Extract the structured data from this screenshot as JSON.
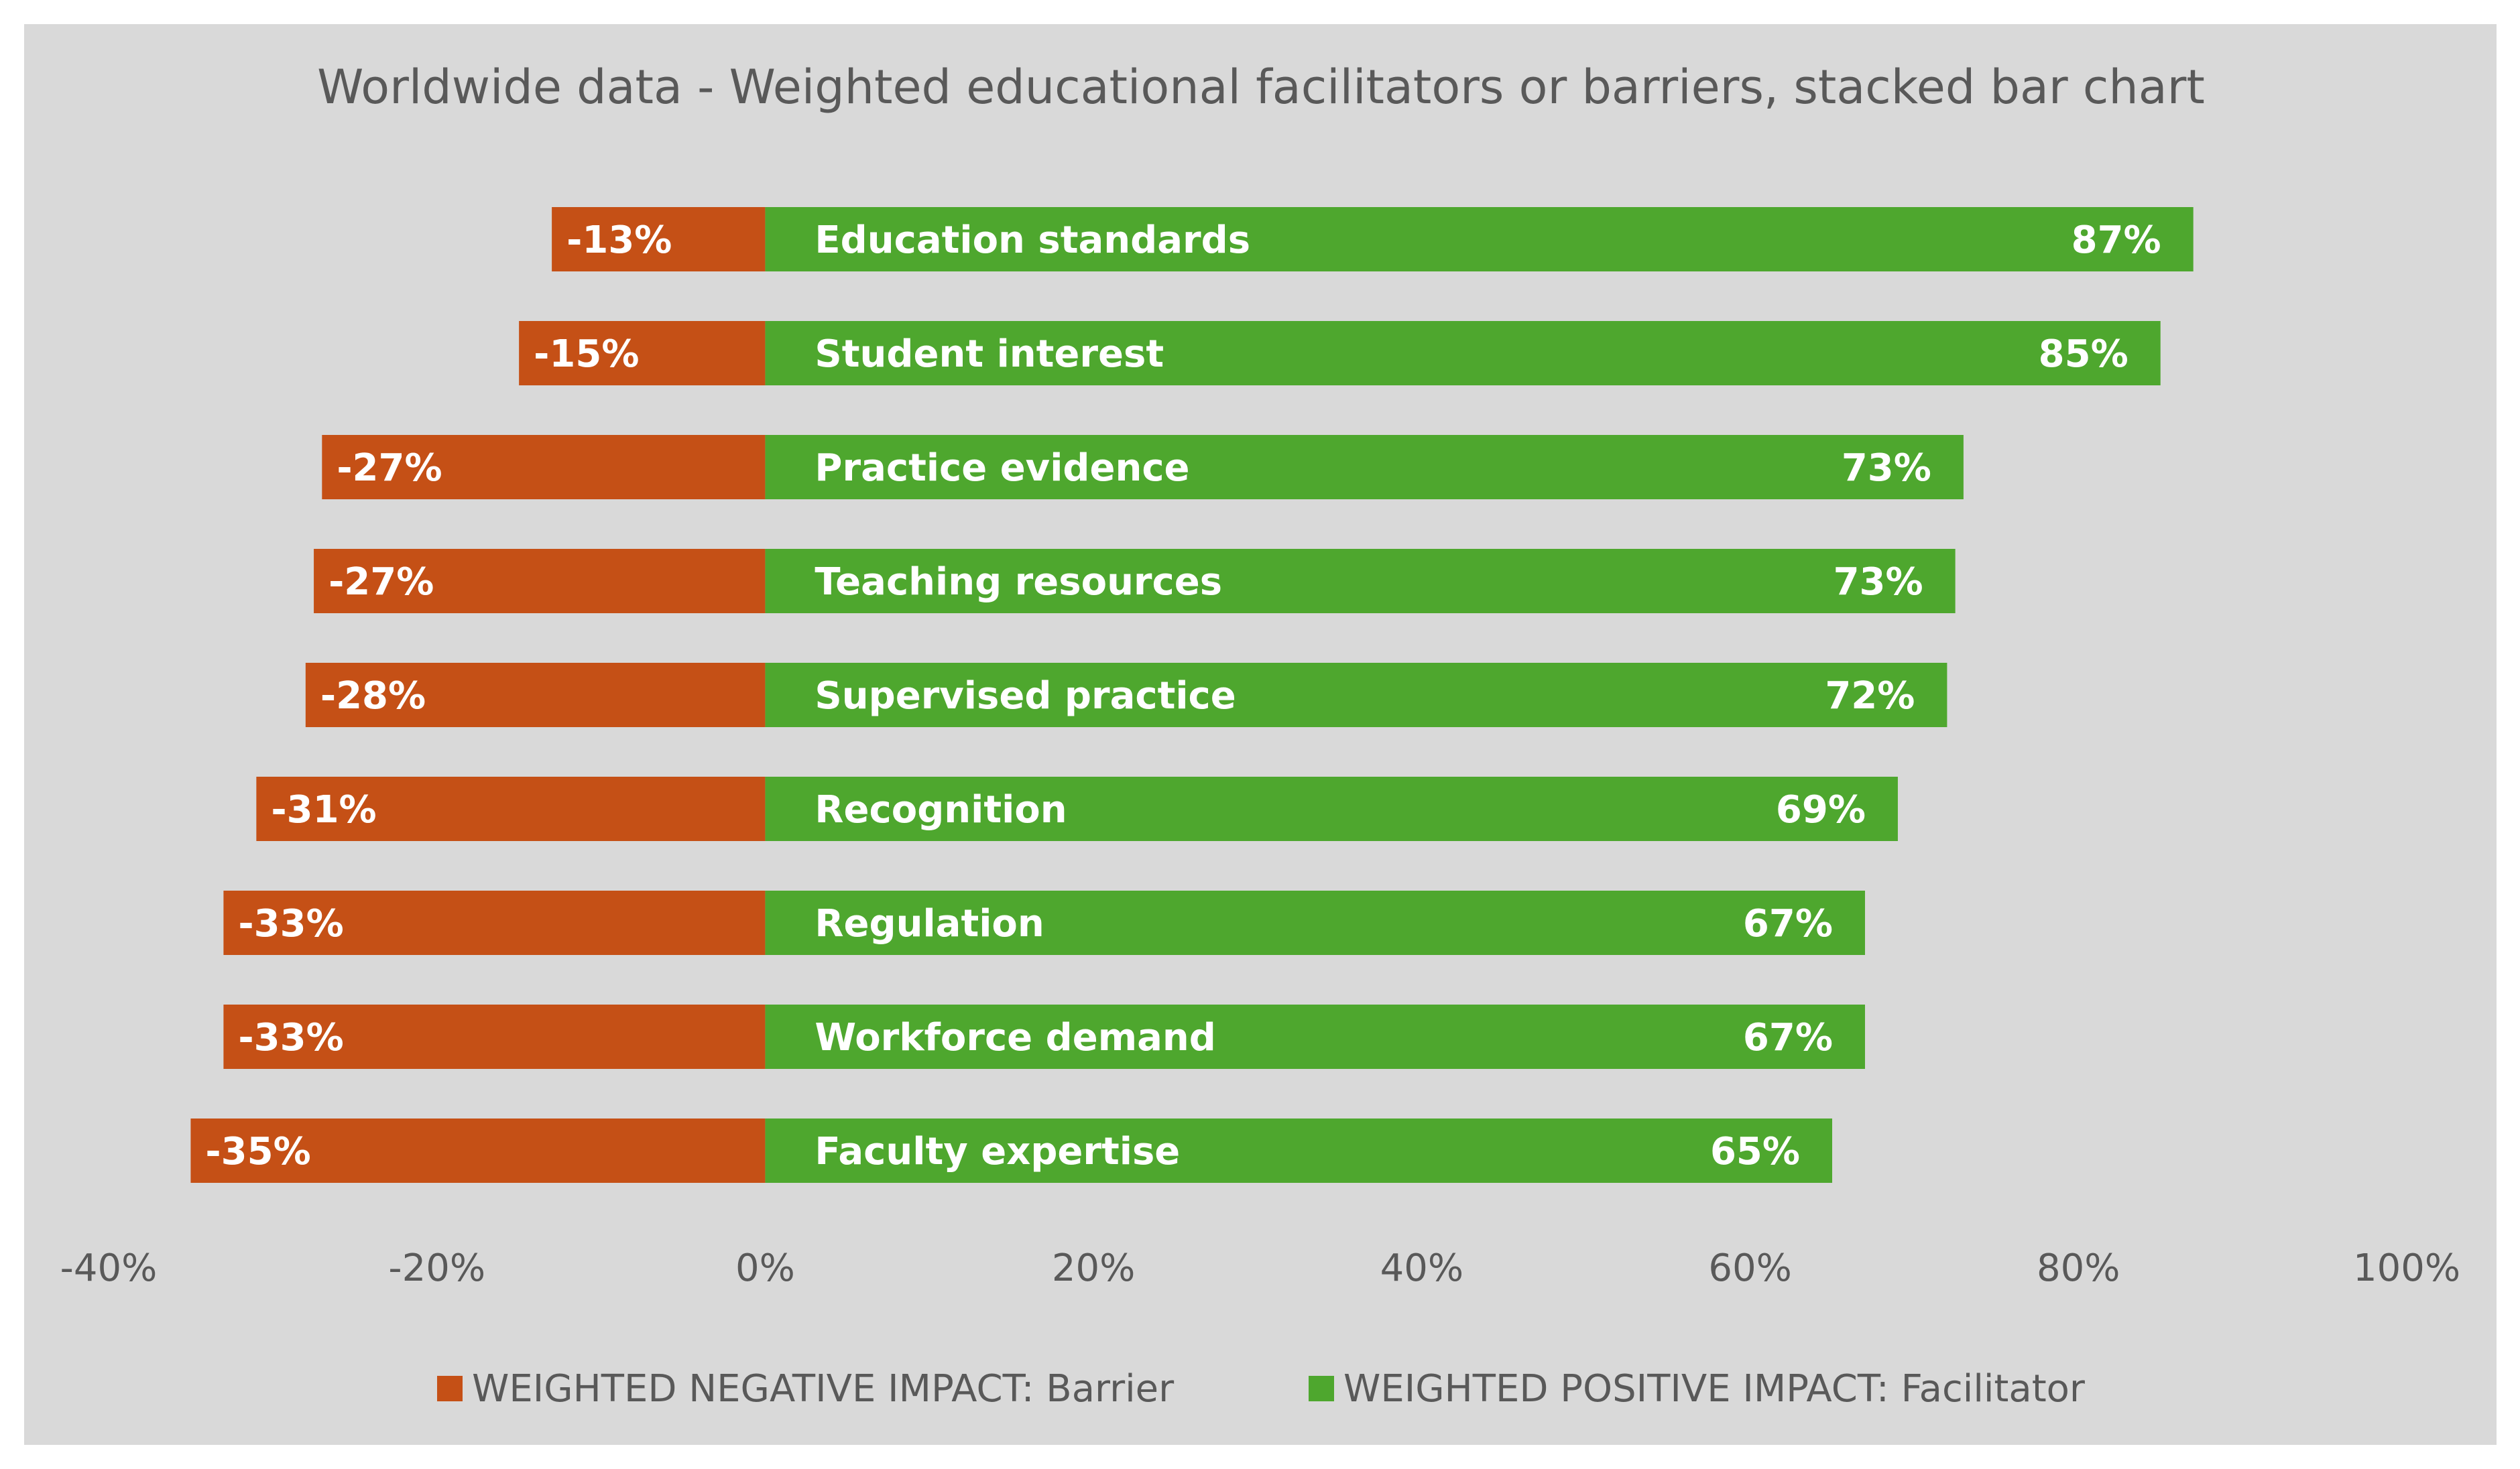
{
  "chart_data": {
    "type": "bar",
    "orientation": "horizontal",
    "stacked": true,
    "title": "Worldwide data - Weighted educational facilitators or barriers, stacked bar chart",
    "categories": [
      "Education standards",
      "Student interest",
      "Practice evidence",
      "Teaching resources",
      "Supervised practice",
      "Recognition",
      "Regulation",
      "Workforce demand",
      "Faculty expertise"
    ],
    "series": [
      {
        "name": "WEIGHTED NEGATIVE IMPACT: Barrier",
        "color": "#c55016",
        "values": [
          -0.13,
          -0.15,
          -0.27,
          -0.275,
          -0.28,
          -0.31,
          -0.33,
          -0.33,
          -0.35
        ],
        "labels": [
          "-13%",
          "-15%",
          "-27%",
          "-27%",
          "-28%",
          "-31%",
          "-33%",
          "-33%",
          "-35%"
        ]
      },
      {
        "name": "WEIGHTED POSITIVE IMPACT: Facilitator",
        "color": "#4ea72e",
        "values": [
          0.87,
          0.85,
          0.73,
          0.725,
          0.72,
          0.69,
          0.67,
          0.67,
          0.65
        ],
        "labels": [
          "87%",
          "85%",
          "73%",
          "73%",
          "72%",
          "69%",
          "67%",
          "67%",
          "65%"
        ]
      }
    ],
    "xlim": [
      -0.4,
      1.0
    ],
    "xticks": [
      "-40%",
      "-20%",
      "0%",
      "20%",
      "40%",
      "60%",
      "80%",
      "100%"
    ],
    "grid": false,
    "legend_position": "bottom",
    "background": "#d9d9d9"
  }
}
